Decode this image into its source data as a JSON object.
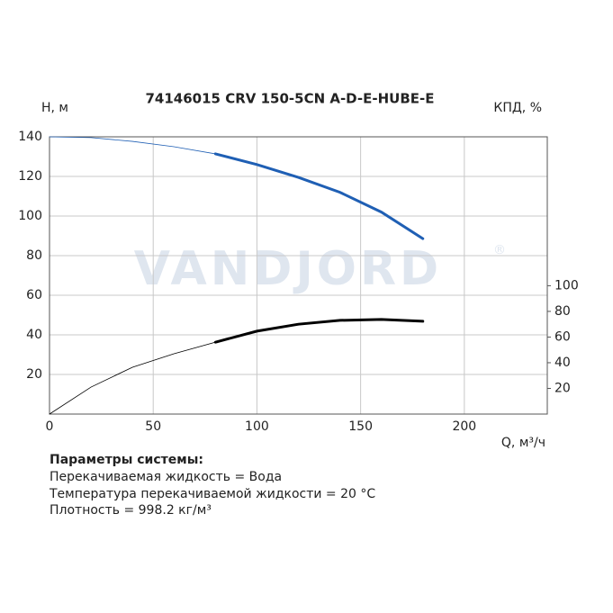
{
  "chart_data": {
    "type": "line",
    "title": "74146015 CRV 150-5CN A-D-E-HUBE-E",
    "y_label": "H, м",
    "y2_label": "КПД, %",
    "x_label": "Q, м³/ч",
    "watermark": "VANDJORD",
    "watermark_mark": "®",
    "x": [
      0,
      20,
      40,
      60,
      80,
      100,
      120,
      140,
      160,
      180
    ],
    "series": [
      {
        "name": "H",
        "color": "#1f5fb4",
        "values": [
          140,
          139.6,
          137.7,
          135,
          131.4,
          126,
          119.5,
          112,
          102,
          88.6
        ]
      },
      {
        "name": "КПД",
        "color": "#000000",
        "axis": "y2",
        "values": [
          0,
          21,
          36.5,
          47,
          56,
          64.6,
          70,
          73,
          73.7,
          72.3
        ]
      }
    ],
    "operating_range": [
      80,
      180
    ],
    "xlim": [
      0,
      240
    ],
    "xticks": [
      0,
      50,
      100,
      150,
      200
    ],
    "ylim": [
      0,
      140
    ],
    "yticks": [
      20,
      40,
      60,
      80,
      100,
      120,
      140
    ],
    "y2lim": [
      0,
      216
    ],
    "y2ticks": [
      20,
      40,
      60,
      80,
      100
    ],
    "grid": true
  },
  "parameters": {
    "heading": "Параметры системы:",
    "lines": [
      "Перекачиваемая жидкость = Вода",
      "Температура перекачиваемой жидкости = 20 °C",
      "Плотность = 998.2 кг/м³"
    ]
  }
}
